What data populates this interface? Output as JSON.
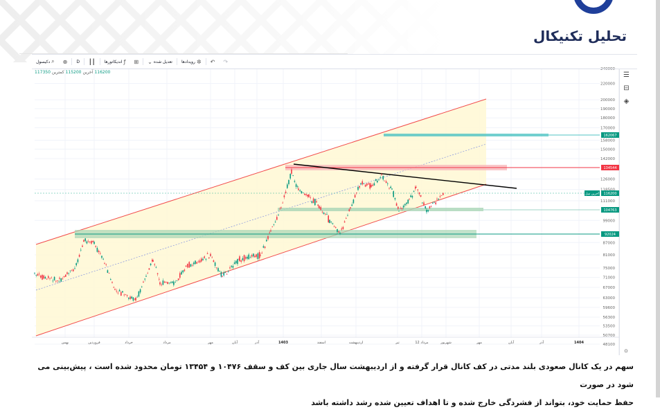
{
  "page": {
    "title": "تحلیل تکنیکال",
    "caption_line1": "سهم در یک کانال صعودی بلند مدتی در کف کانال قرار گرفته و از اردیبهشت سال جاری بین کف و سقف ۱۰۴۷۶ و ۱۳۴۵۴ تومان محدود شده است ، پیش‌بینی می شود در صورت",
    "caption_line2": "حفظ حمایت خود، بتواند از فشردگی خارج شده و تا اهداف تعیین شده رشد داشته باشد"
  },
  "toolbar": {
    "symbol_search": "دکیسول",
    "add_compare": "+",
    "interval": "D",
    "chart_type_icon": "candles-icon",
    "indicators": "اندیکاتورها",
    "layouts_icon": "layout-grid-icon",
    "adjustment": "تعدیل شده",
    "events": "رویدادها",
    "undo_icon": "undo-icon",
    "redo_icon": "redo-icon"
  },
  "legend": {
    "last_value": "116200",
    "last_label": "آخرین",
    "min_value": "115200",
    "min_label": "کمترین",
    "max_value": "117350"
  },
  "price_labels": {
    "target": "162067",
    "resistance": "134544",
    "current_tag": "آخرین سل",
    "current": "116200",
    "support1": "104763",
    "support2": "92024"
  },
  "colors": {
    "up": "#089981",
    "down": "#f23645",
    "channel": "#f24b4b",
    "channel_fill": "#fff8d6",
    "zone_green": "#a8d5b5",
    "zone_red": "#f7b9bc",
    "target_zone": "#4fc3c3",
    "trendline": "#000000",
    "midline": "#7f8fe0",
    "label_green": "#089981",
    "label_red": "#f23645"
  },
  "chart_data": {
    "type": "candlestick",
    "title": "تحلیل تکنیکال",
    "xlabel": "",
    "ylabel": "",
    "y_scale": "log",
    "ylim": [
      48100,
      240000
    ],
    "y_ticks": [
      240000,
      220000,
      200000,
      190000,
      180000,
      170000,
      158000,
      150000,
      142000,
      126000,
      118500,
      111000,
      99000,
      87000,
      81000,
      75000,
      71000,
      67000,
      63000,
      59600,
      56300,
      53500,
      50700,
      48100
    ],
    "x_ticks": [
      "بهمن",
      "فروردین",
      "خرداد",
      "مرداد",
      "مهر",
      "آبان",
      "آذر",
      "1403",
      "اسفند",
      "اردیبهشت",
      "تیر",
      "12 مرداد",
      "شهریور",
      "مهر",
      "آبان",
      "آذر",
      "1404"
    ],
    "grid": true,
    "legend_position": "none",
    "close_series_approx": [
      [
        "بهمن",
        74000
      ],
      [
        "اسفند",
        70000
      ],
      [
        "فروردین",
        92000
      ],
      [
        "اردیبهشت",
        82000
      ],
      [
        "خرداد",
        63000
      ],
      [
        "تیر",
        82000
      ],
      [
        "مرداد",
        70000
      ],
      [
        "شهریور",
        80000
      ],
      [
        "مهر",
        88000
      ],
      [
        "آبان",
        74000
      ],
      [
        "آذر",
        83000
      ],
      [
        "دی",
        96000
      ],
      [
        "1403",
        118000
      ],
      [
        "1403-فروردین",
        131000
      ],
      [
        "بهمن",
        112000
      ],
      [
        "اسفند",
        98000
      ],
      [
        "اردیبهشت",
        128000
      ],
      [
        "خرداد",
        112000
      ],
      [
        "تیر",
        108000
      ],
      [
        "12 مرداد",
        122000
      ],
      [
        "مرداد",
        106000
      ],
      [
        "شهریور",
        116200
      ]
    ],
    "annotations": {
      "ascending_channel": {
        "upper_start": 88000,
        "upper_end": 200000,
        "lower_start": 51000,
        "lower_end": 120000
      },
      "resistance_zone": 134544,
      "descending_trendline": {
        "from": 134000,
        "to": 120000
      },
      "target_line": 162067,
      "support_zone_1": 104763,
      "support_zone_2": 92024,
      "last_price_line": 116200
    }
  }
}
